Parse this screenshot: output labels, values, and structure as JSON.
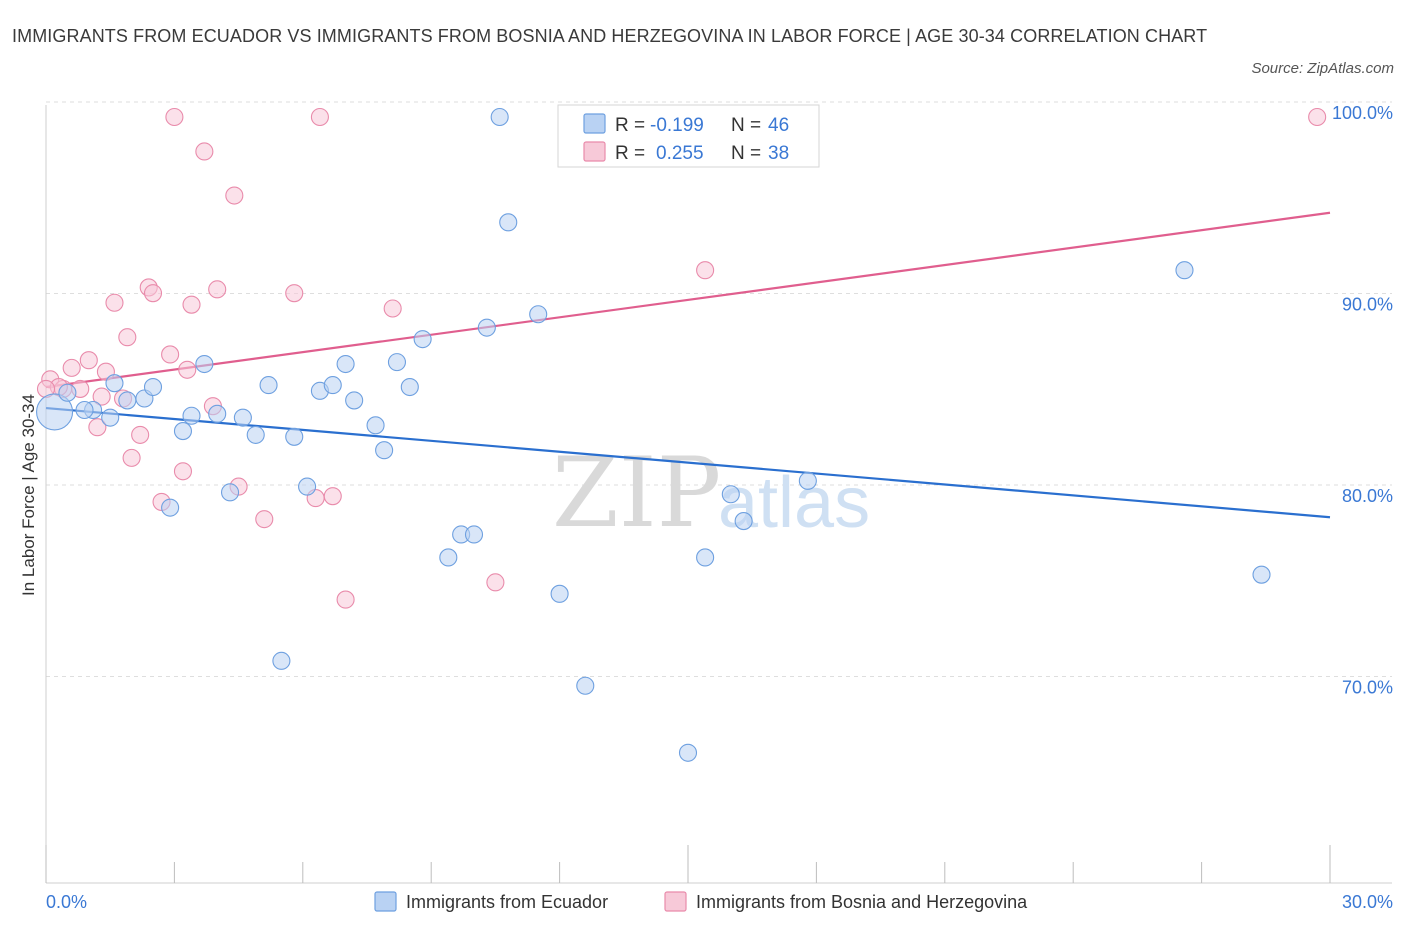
{
  "chart_data": {
    "type": "scatter",
    "title": "IMMIGRANTS FROM ECUADOR VS IMMIGRANTS FROM BOSNIA AND HERZEGOVINA IN LABOR FORCE | AGE 30-34 CORRELATION CHART",
    "source": "Source: ZipAtlas.com",
    "ylabel": "In Labor Force | Age 30-34",
    "xlim": [
      0,
      30
    ],
    "ylim": [
      60,
      100
    ],
    "x_tick_labels": [
      "0.0%",
      "30.0%"
    ],
    "y_ticks": [
      70,
      80,
      90,
      100
    ],
    "y_tick_labels": [
      "70.0%",
      "80.0%",
      "90.0%",
      "100.0%"
    ],
    "watermark": {
      "zip": "ZIP",
      "atlas": "atlas"
    },
    "stats_legend": [
      {
        "r_label": "R =",
        "r_value": "-0.199",
        "n_label": "N =",
        "n_value": "46"
      },
      {
        "r_label": "R =",
        "r_value": "0.255",
        "n_label": "N =",
        "n_value": "38"
      }
    ],
    "series": [
      {
        "name": "Immigrants from Ecuador",
        "color": "#6ea0e0",
        "fill": "#b9d2f3",
        "line_color": "#2a6fcf",
        "trend": {
          "x": [
            0,
            30
          ],
          "y": [
            84.8,
            79.1
          ]
        },
        "points": [
          [
            0.2,
            84.6,
            3
          ],
          [
            0.5,
            85.6,
            1
          ],
          [
            1.1,
            84.7,
            1
          ],
          [
            1.5,
            84.3,
            1
          ],
          [
            1.6,
            86.1,
            1
          ],
          [
            1.9,
            85.2,
            1
          ],
          [
            2.3,
            85.3,
            1
          ],
          [
            2.5,
            85.9,
            1
          ],
          [
            2.9,
            79.6,
            1
          ],
          [
            3.2,
            83.6,
            1
          ],
          [
            3.4,
            84.4,
            1
          ],
          [
            3.7,
            87.1,
            1
          ],
          [
            4.0,
            84.5,
            1
          ],
          [
            4.3,
            80.4,
            1
          ],
          [
            4.6,
            84.3,
            1
          ],
          [
            4.9,
            83.4,
            1
          ],
          [
            5.2,
            86.0,
            1
          ],
          [
            5.5,
            71.6,
            1
          ],
          [
            5.8,
            83.3,
            1
          ],
          [
            6.1,
            80.7,
            1
          ],
          [
            6.4,
            85.7,
            1
          ],
          [
            6.7,
            86.0,
            1
          ],
          [
            7.0,
            87.1,
            1
          ],
          [
            7.2,
            85.2,
            1
          ],
          [
            7.7,
            83.9,
            1
          ],
          [
            7.9,
            82.6,
            1
          ],
          [
            8.2,
            87.2,
            1
          ],
          [
            8.5,
            85.9,
            1
          ],
          [
            8.8,
            88.4,
            1
          ],
          [
            9.4,
            77.0,
            1
          ],
          [
            9.7,
            78.2,
            1
          ],
          [
            10.0,
            78.2,
            1
          ],
          [
            10.3,
            89.0,
            1
          ],
          [
            10.6,
            100.0,
            1
          ],
          [
            10.8,
            94.5,
            1
          ],
          [
            11.5,
            89.7,
            1
          ],
          [
            12.0,
            75.1,
            1
          ],
          [
            12.6,
            70.3,
            1
          ],
          [
            15.0,
            66.8,
            1
          ],
          [
            15.4,
            77.0,
            1
          ],
          [
            16.0,
            80.3,
            1
          ],
          [
            16.3,
            78.9,
            1
          ],
          [
            17.8,
            81.0,
            1
          ],
          [
            26.6,
            92.0,
            1
          ],
          [
            28.4,
            76.1,
            1
          ],
          [
            0.9,
            84.7,
            1
          ]
        ]
      },
      {
        "name": "Immigrants from Bosnia and Herzegovina",
        "color": "#e98bab",
        "fill": "#f7c9d8",
        "line_color": "#e05e8e",
        "trend": {
          "x": [
            0,
            30
          ],
          "y": [
            85.9,
            95.0
          ]
        },
        "points": [
          [
            0.1,
            86.3,
            1
          ],
          [
            0.4,
            85.8,
            1
          ],
          [
            0.6,
            86.9,
            1
          ],
          [
            0.8,
            85.8,
            1
          ],
          [
            1.0,
            87.3,
            1
          ],
          [
            1.2,
            83.8,
            1
          ],
          [
            1.4,
            86.7,
            1
          ],
          [
            1.6,
            90.3,
            1
          ],
          [
            1.8,
            85.3,
            1
          ],
          [
            1.9,
            88.5,
            1
          ],
          [
            2.0,
            82.2,
            1
          ],
          [
            2.2,
            83.4,
            1
          ],
          [
            2.4,
            91.1,
            1
          ],
          [
            2.5,
            90.8,
            1
          ],
          [
            2.7,
            79.9,
            1
          ],
          [
            2.9,
            87.6,
            1
          ],
          [
            3.0,
            100.0,
            1
          ],
          [
            3.2,
            81.5,
            1
          ],
          [
            3.3,
            86.8,
            1
          ],
          [
            3.4,
            90.2,
            1
          ],
          [
            3.7,
            98.2,
            1
          ],
          [
            3.9,
            84.9,
            1
          ],
          [
            4.0,
            91.0,
            1
          ],
          [
            4.4,
            95.9,
            1
          ],
          [
            4.5,
            80.7,
            1
          ],
          [
            5.1,
            79.0,
            1
          ],
          [
            5.8,
            90.8,
            1
          ],
          [
            6.3,
            80.1,
            1
          ],
          [
            6.4,
            100.0,
            1
          ],
          [
            6.7,
            80.2,
            1
          ],
          [
            7.0,
            74.8,
            1
          ],
          [
            8.1,
            90.0,
            1
          ],
          [
            10.5,
            75.7,
            1
          ],
          [
            15.4,
            92.0,
            1
          ],
          [
            29.7,
            100.0,
            1
          ],
          [
            0.3,
            85.9,
            1
          ],
          [
            1.3,
            85.4,
            1
          ],
          [
            0.0,
            85.8,
            1
          ]
        ]
      }
    ]
  }
}
